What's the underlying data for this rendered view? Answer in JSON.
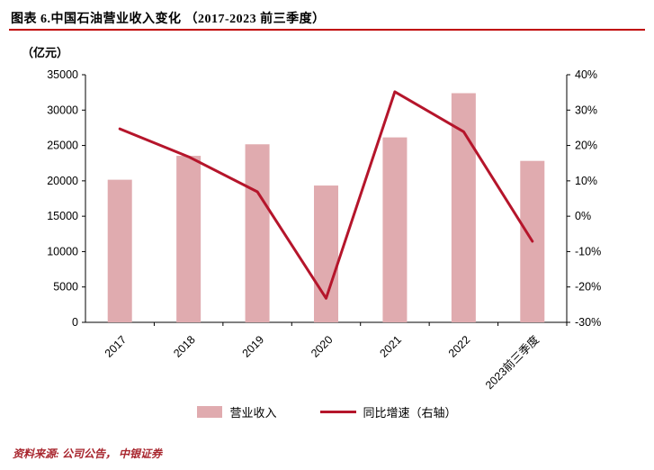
{
  "title": "图表 6.中国石油营业收入变化 （2017-2023 前三季度）",
  "unit_label": "（亿元）",
  "legend": {
    "bar": "营业收入",
    "line": "同比增速（右轴）"
  },
  "source_note": "资料来源: 公司公告， 中银证券",
  "colors": {
    "bar": "#e0abaf",
    "line": "#b5152b",
    "accent_rule": "#c00000",
    "source_text": "#a8262e",
    "axis": "#000000"
  },
  "chart_data": {
    "type": "bar",
    "title": "中国石油营业收入变化（2017-2023前三季度）",
    "categories": [
      "2017",
      "2018",
      "2019",
      "2020",
      "2021",
      "2022",
      "2023前三季度"
    ],
    "series": [
      {
        "name": "营业收入",
        "type": "bar",
        "axis": "left",
        "values": [
          20159,
          23536,
          25168,
          19338,
          26143,
          32392,
          22822
        ]
      },
      {
        "name": "同比增速（右轴）",
        "type": "line",
        "axis": "right",
        "values": [
          24.7,
          16.8,
          6.9,
          -23.2,
          35.2,
          23.9,
          -7.1
        ]
      }
    ],
    "left_axis": {
      "label": "（亿元）",
      "min": 0,
      "max": 35000,
      "step": 5000
    },
    "right_axis": {
      "label": "同比增速",
      "min": -30,
      "max": 40,
      "step": 10,
      "format": "percent"
    },
    "grid": false,
    "legend_position": "bottom"
  }
}
